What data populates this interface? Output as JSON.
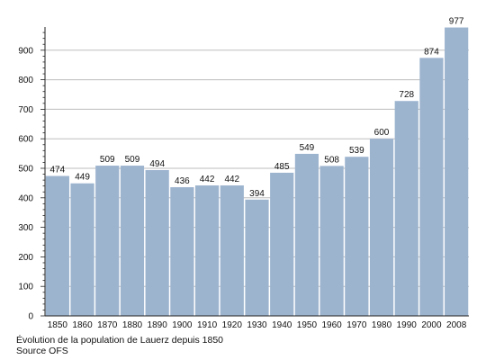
{
  "chart_data": {
    "type": "bar",
    "categories": [
      "1850",
      "1860",
      "1870",
      "1880",
      "1890",
      "1900",
      "1910",
      "1920",
      "1930",
      "1940",
      "1950",
      "1960",
      "1970",
      "1980",
      "1990",
      "2000",
      "2008"
    ],
    "values": [
      474,
      449,
      509,
      509,
      494,
      436,
      442,
      442,
      394,
      485,
      549,
      508,
      539,
      600,
      728,
      874,
      977
    ],
    "title": "",
    "xlabel": "",
    "ylabel": "",
    "ylim": [
      0,
      1000
    ],
    "yticks": [
      0,
      100,
      200,
      300,
      400,
      500,
      600,
      700,
      800,
      900
    ],
    "grid": true,
    "data_labels": true,
    "bar_color": "#9db4cf",
    "grid_color": "#bdbdbd"
  },
  "caption": {
    "line1": "Évolution de la population de Lauerz depuis 1850",
    "line2": "Source OFS"
  }
}
